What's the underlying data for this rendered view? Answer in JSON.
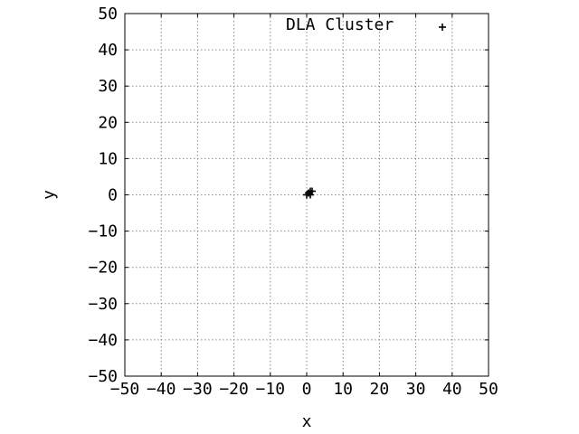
{
  "chart_data": {
    "type": "scatter",
    "xlabel": "x",
    "ylabel": "y",
    "xlim": [
      -50,
      50
    ],
    "ylim": [
      -50,
      50
    ],
    "xticks": [
      -50,
      -40,
      -30,
      -20,
      -10,
      0,
      10,
      20,
      30,
      40,
      50
    ],
    "yticks": [
      -50,
      -40,
      -30,
      -20,
      -10,
      0,
      10,
      20,
      30,
      40,
      50
    ],
    "xtick_labels": [
      "−50",
      "−40",
      "−30",
      "−20",
      "−10",
      "0",
      "10",
      "20",
      "30",
      "40",
      "50"
    ],
    "ytick_labels": [
      "−50",
      "−40",
      "−30",
      "−20",
      "−10",
      "0",
      "10",
      "20",
      "30",
      "40",
      "50"
    ],
    "grid": true,
    "legend_placement": "top-right",
    "marker": "+",
    "marker_color": "#000000",
    "series": [
      {
        "name": "DLA Cluster",
        "points": [
          [
            0,
            0
          ],
          [
            1,
            0
          ],
          [
            1,
            1
          ],
          [
            0.5,
            0.5
          ],
          [
            1.5,
            1
          ]
        ]
      }
    ]
  }
}
